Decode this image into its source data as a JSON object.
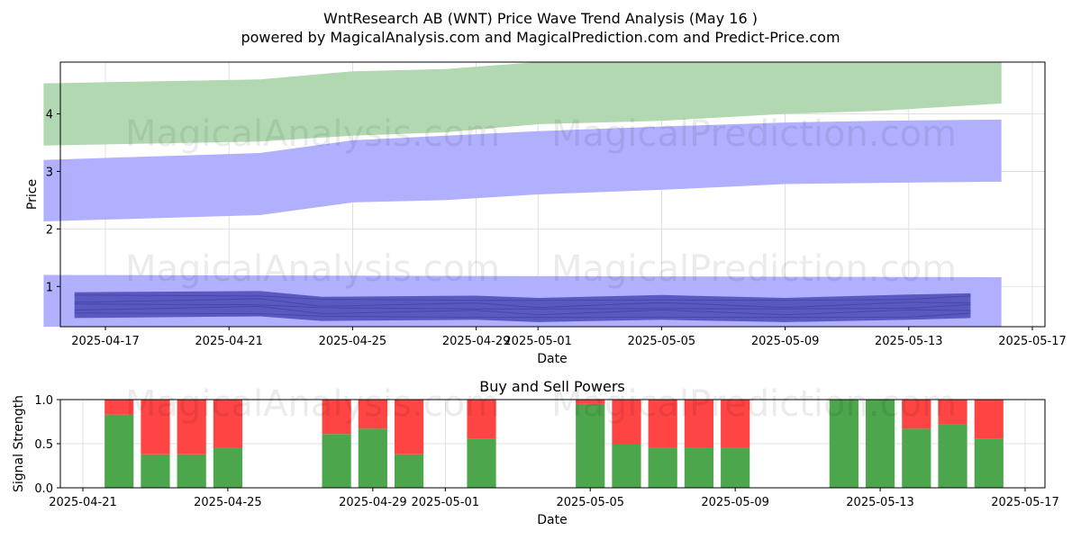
{
  "title_line1": "WntResearch AB (WNT) Price Wave Trend Analysis (May 16 )",
  "title_line2": "powered by MagicalAnalysis.com and MagicalPrediction.com and Predict-Price.com",
  "watermarks": [
    "MagicalAnalysis.com",
    "MagicalPrediction.com"
  ],
  "chart_data": [
    {
      "type": "area",
      "xlabel": "Date",
      "ylabel": "Price",
      "x_ticks": [
        "2025-04-17",
        "2025-04-21",
        "2025-04-25",
        "2025-04-29",
        "2025-05-01",
        "2025-05-05",
        "2025-05-09",
        "2025-05-13",
        "2025-05-17"
      ],
      "y_ticks": [
        1,
        2,
        3,
        4
      ],
      "xlim": [
        "2025-04-15",
        "2025-05-17"
      ],
      "ylim": [
        0.3,
        4.9
      ],
      "grid": true,
      "colors": {
        "green_band": "#b2d8b2",
        "blue_band": "#b0b0ff",
        "dark_band": "#5050b8",
        "dark_line": "#3a3aa0"
      },
      "bands": [
        {
          "color": "green",
          "x": [
            "2025-04-15",
            "2025-04-22",
            "2025-04-25",
            "2025-04-28",
            "2025-05-01",
            "2025-05-05",
            "2025-05-09",
            "2025-05-12",
            "2025-05-16"
          ],
          "low": [
            3.45,
            3.52,
            3.62,
            3.68,
            3.82,
            3.88,
            4.0,
            4.05,
            4.18
          ],
          "high": [
            4.53,
            4.6,
            4.74,
            4.78,
            4.9,
            4.9,
            4.9,
            4.9,
            4.9
          ]
        },
        {
          "color": "blue",
          "x": [
            "2025-04-15",
            "2025-04-22",
            "2025-04-25",
            "2025-04-28",
            "2025-05-01",
            "2025-05-05",
            "2025-05-09",
            "2025-05-12",
            "2025-05-16"
          ],
          "low": [
            2.13,
            2.24,
            2.46,
            2.5,
            2.6,
            2.68,
            2.78,
            2.8,
            2.82
          ],
          "high": [
            3.2,
            3.32,
            3.54,
            3.62,
            3.7,
            3.78,
            3.85,
            3.88,
            3.9
          ]
        },
        {
          "color": "blue",
          "x": [
            "2025-04-15",
            "2025-05-16"
          ],
          "low": [
            0.3,
            0.3
          ],
          "high": [
            1.2,
            1.16
          ]
        },
        {
          "color": "dark",
          "x": [
            "2025-04-16",
            "2025-04-22",
            "2025-04-24",
            "2025-04-29",
            "2025-05-01",
            "2025-05-05",
            "2025-05-09",
            "2025-05-13",
            "2025-05-15"
          ],
          "low": [
            0.45,
            0.48,
            0.4,
            0.42,
            0.38,
            0.42,
            0.38,
            0.42,
            0.45
          ],
          "high": [
            0.9,
            0.92,
            0.82,
            0.84,
            0.8,
            0.85,
            0.8,
            0.86,
            0.88
          ]
        }
      ]
    },
    {
      "type": "bar",
      "title": "Buy and Sell Powers",
      "xlabel": "Date",
      "ylabel": "Signal Strength",
      "x_ticks": [
        "2025-04-21",
        "2025-04-25",
        "2025-04-29",
        "2025-05-01",
        "2025-05-05",
        "2025-05-09",
        "2025-05-13",
        "2025-05-17"
      ],
      "y_ticks": [
        "0.0",
        "0.5",
        "1.0"
      ],
      "ylim": [
        0,
        1
      ],
      "grid": true,
      "colors": {
        "buy": "#4ca64c",
        "sell": "#ff4444"
      },
      "categories": [
        "2025-04-22",
        "2025-04-23",
        "2025-04-24",
        "2025-04-25",
        "2025-04-28",
        "2025-04-29",
        "2025-04-30",
        "2025-05-02",
        "2025-05-05",
        "2025-05-06",
        "2025-05-07",
        "2025-05-08",
        "2025-05-09",
        "2025-05-12",
        "2025-05-13",
        "2025-05-14",
        "2025-05-15",
        "2025-05-16"
      ],
      "series": [
        {
          "values": [
            0.83,
            0.38,
            0.38,
            0.45,
            0.61,
            0.67,
            0.38,
            0.56,
            0.95,
            0.49,
            0.45,
            0.45,
            0.45,
            1.0,
            1.0,
            0.67,
            0.72,
            0.56
          ]
        },
        {
          "values": [
            0.17,
            0.62,
            0.62,
            0.55,
            0.39,
            0.33,
            0.62,
            0.44,
            0.05,
            0.51,
            0.55,
            0.55,
            0.55,
            0.0,
            0.0,
            0.33,
            0.28,
            0.44
          ]
        }
      ]
    }
  ]
}
